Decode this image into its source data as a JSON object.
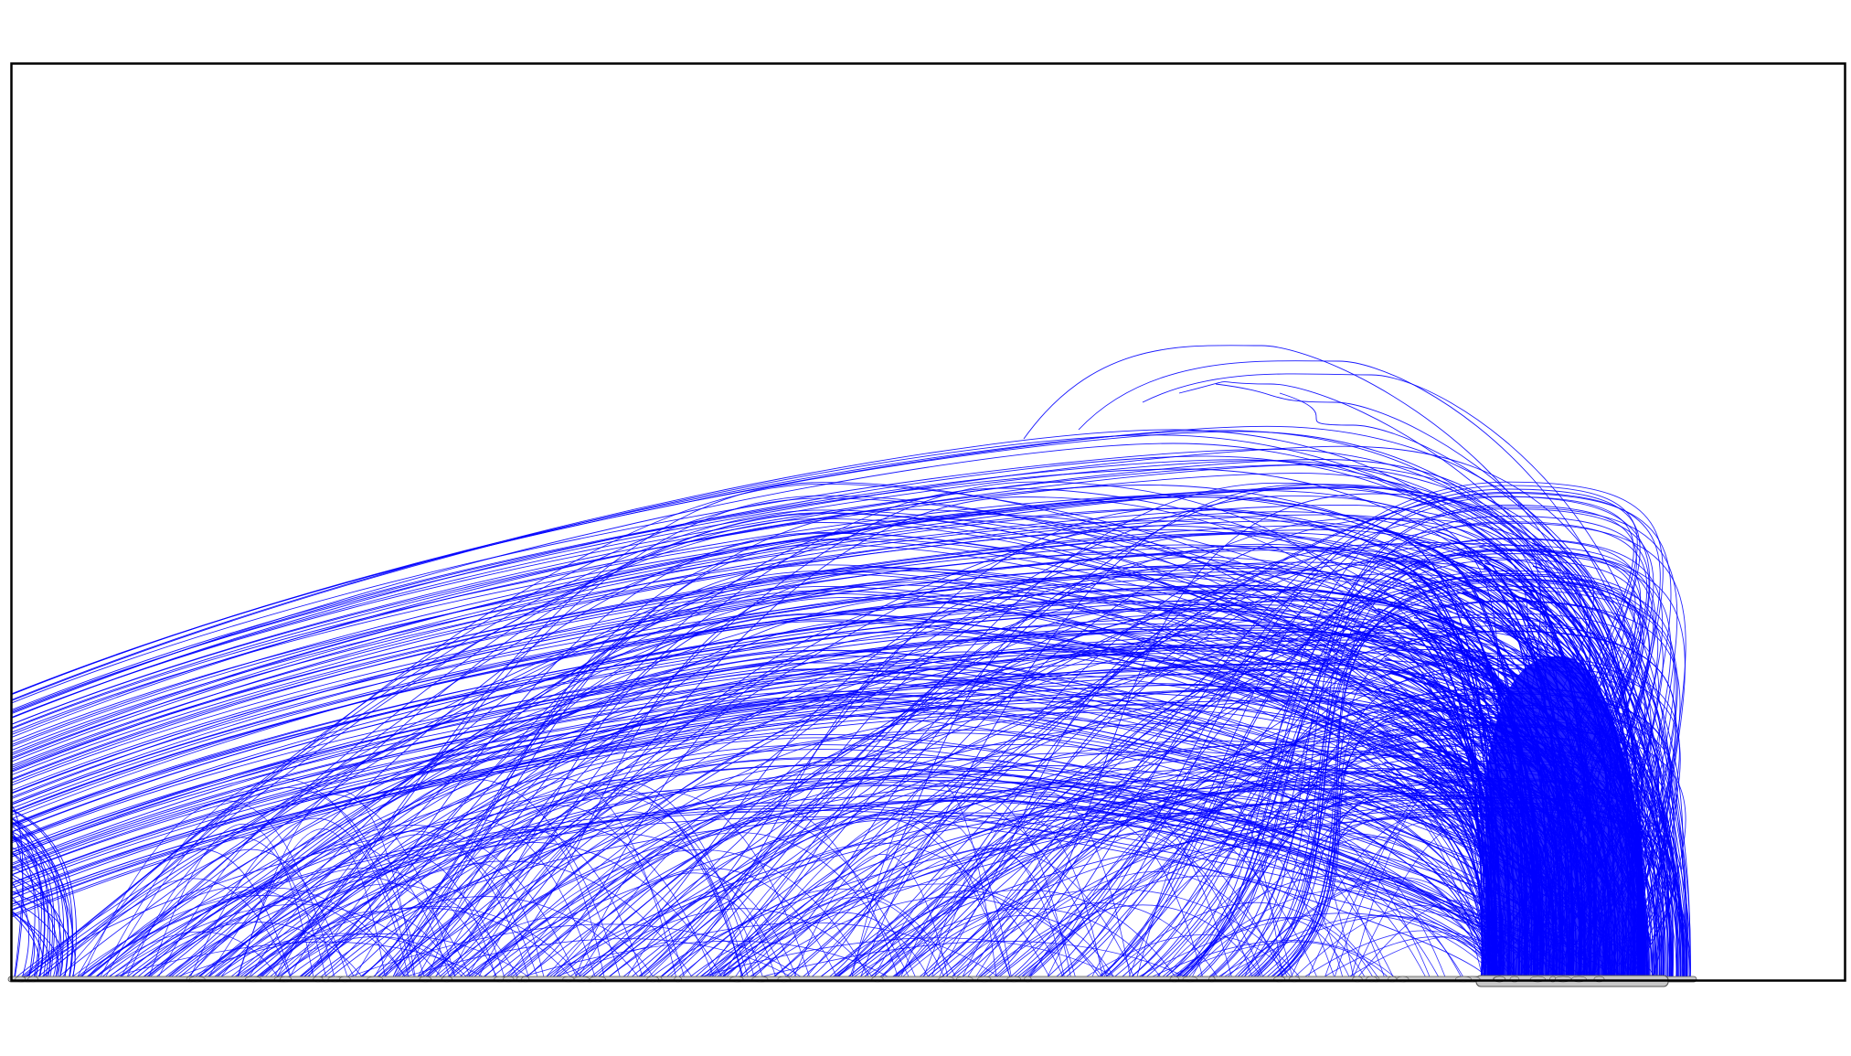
{
  "scene": {
    "kind": "streamline-visualization",
    "colors": {
      "background": "#ffffff",
      "frame": "#000000",
      "streamline": "#0000ff",
      "ground_surface": "#c8c8c8",
      "ground_outline": "#555555"
    },
    "streamline_families": {
      "upper_envelope": {
        "count": 90
      },
      "dense_core": {
        "count": 260
      },
      "low_arcs": {
        "count": 140
      },
      "left_column": {
        "count": 30
      },
      "right_column": {
        "count": 120
      },
      "top_loops": {
        "count": 6
      }
    }
  }
}
